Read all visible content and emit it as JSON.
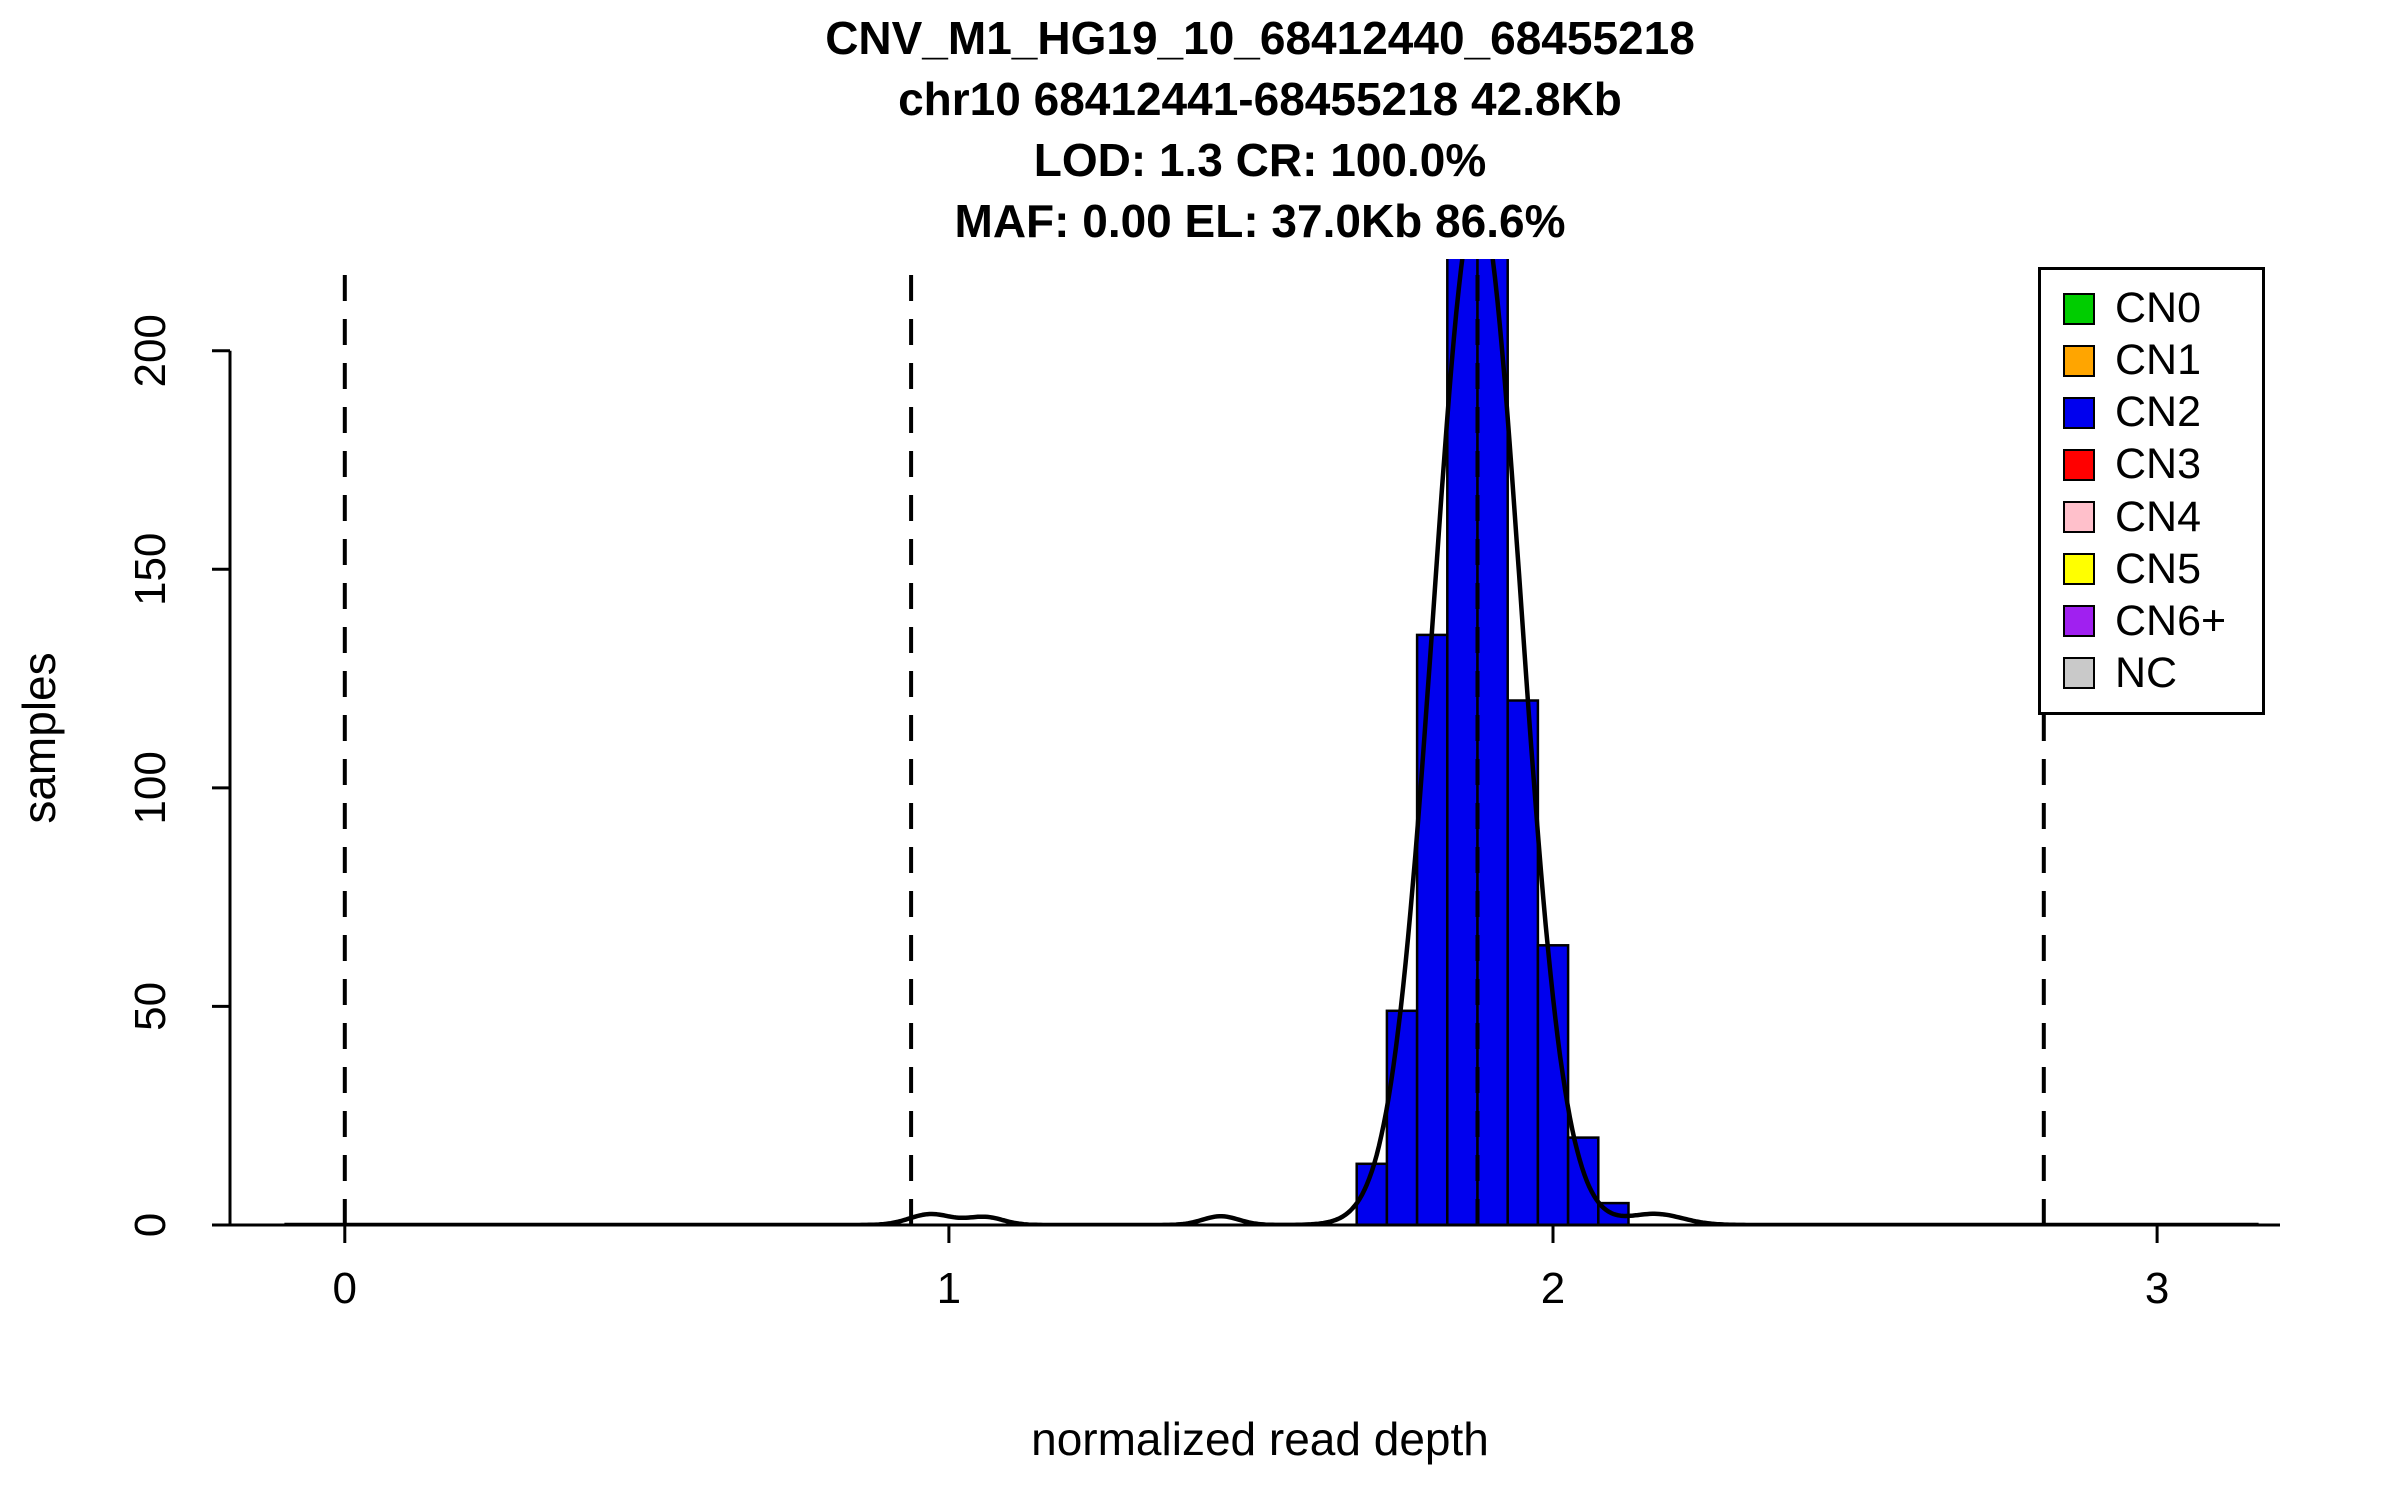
{
  "chart_data": {
    "type": "bar",
    "subtype": "histogram-with-density",
    "title_lines": [
      "CNV_M1_HG19_10_68412440_68455218",
      "chr10 68412441-68455218 42.8Kb",
      "LOD: 1.3 CR: 100.0%",
      "MAF: 0.00 EL: 37.0Kb 86.6%"
    ],
    "xlabel": "normalized read depth",
    "ylabel": "samples",
    "xlim": [
      -0.19,
      3.22
    ],
    "ylim": [
      0,
      221
    ],
    "x_ticks": [
      0,
      1,
      2,
      3
    ],
    "y_ticks": [
      0,
      50,
      100,
      150,
      200
    ],
    "grid": false,
    "histogram": {
      "bin_start": 1.675,
      "bin_width": 0.05,
      "counts": [
        14,
        49,
        135,
        230,
        230,
        120,
        64,
        20,
        5
      ],
      "clipped_at_ymax": true
    },
    "cn_dashed_lines_x": [
      0,
      0.9375,
      1.875,
      2.8125
    ],
    "density_curve": {
      "main_peak": {
        "mean": 1.875,
        "sd": 0.072,
        "amp": 235
      },
      "minor_bumps": [
        {
          "mean": 0.97,
          "sd": 0.035,
          "amp": 2.5
        },
        {
          "mean": 1.06,
          "sd": 0.03,
          "amp": 1.8
        },
        {
          "mean": 1.45,
          "sd": 0.03,
          "amp": 2.0
        },
        {
          "mean": 2.17,
          "sd": 0.045,
          "amp": 2.5
        }
      ]
    },
    "colors": {
      "bar_fill": "#0000EE",
      "curve": "#000000",
      "axis": "#000000"
    },
    "legend": {
      "position": "top-right",
      "items": [
        {
          "label": "CN0",
          "color": "#00CD00"
        },
        {
          "label": "CN1",
          "color": "#FFA500"
        },
        {
          "label": "CN2",
          "color": "#0000EE"
        },
        {
          "label": "CN3",
          "color": "#FF0000"
        },
        {
          "label": "CN4",
          "color": "#FFC0CB"
        },
        {
          "label": "CN5",
          "color": "#FFFF00"
        },
        {
          "label": "CN6+",
          "color": "#A020F0"
        },
        {
          "label": "NC",
          "color": "#C9C9C9"
        }
      ]
    }
  }
}
